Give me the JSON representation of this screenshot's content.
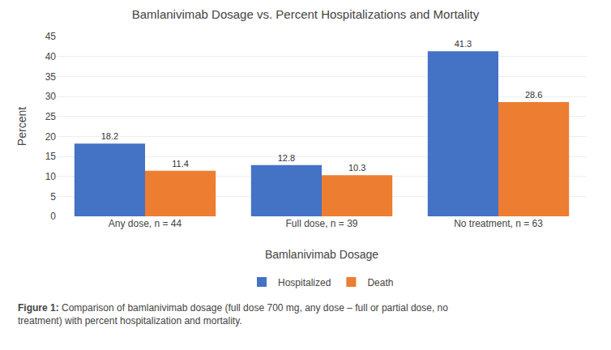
{
  "chart_data": {
    "type": "bar",
    "title": "Bamlanivimab Dosage vs. Percent Hospitalizations and Mortality",
    "x_label": "Bamlanivimab Dosage",
    "y_label": "Percent",
    "categories": [
      "Any dose, n = 44",
      "Full dose, n = 39",
      "No treatment, n = 63"
    ],
    "series": [
      {
        "name": "Hospitalized",
        "color": "#4472C4",
        "values": [
          18.2,
          12.8,
          41.3
        ]
      },
      {
        "name": "Death",
        "color": "#ED7D31",
        "values": [
          11.4,
          10.3,
          28.6
        ]
      }
    ],
    "ylim": [
      0,
      45
    ],
    "yticks": [
      0,
      5,
      10,
      15,
      20,
      25,
      30,
      35,
      40,
      45
    ],
    "grid": true,
    "legend": "bottom",
    "data_labels": true,
    "annotations": [
      "Figure 1:",
      "Comparison of bamlanivimab dosage (full dose 700 mg, any dose – full or partial dose, no treatment) with percent hospitalization and mortality."
    ]
  }
}
